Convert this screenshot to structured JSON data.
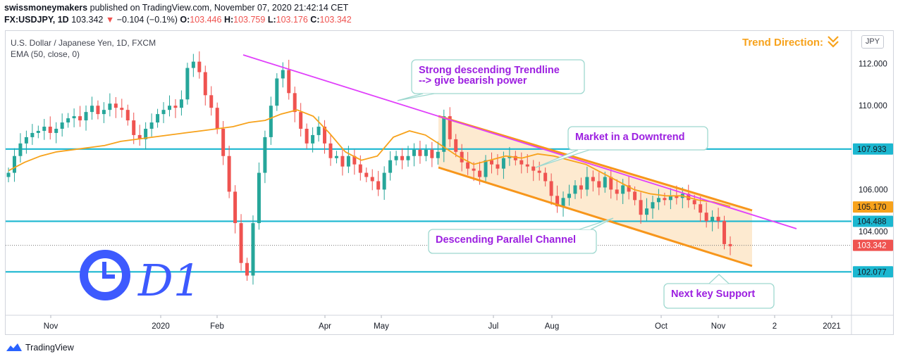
{
  "header": {
    "publisher": "swissmoneymakers",
    "published_text": "published on TradingView.com, November 07, 2020 21:42:14 CET",
    "symbol": "FX:USDJPY, 1D",
    "last": "103.342",
    "change_arrow": "▼",
    "change": "−0.104 (−0.1%)",
    "open_label": "O:",
    "open": "103.446",
    "high_label": "H:",
    "high": "103.759",
    "low_label": "L:",
    "low": "103.176",
    "close_label": "C:",
    "close": "103.342"
  },
  "legend": {
    "instrument": "U.S. Dollar / Japanese Yen, 1D, FXCM",
    "indicator": "EMA (50, close, 0)"
  },
  "currency_button": "JPY",
  "trend_direction_label": "Trend Direction:",
  "footer_brand": "TradingView",
  "timeframe_drawing": "D1",
  "annotations": {
    "trendline": [
      "Strong descending Trendline",
      "--> give bearish power"
    ],
    "downtrend": "Market in a Downtrend",
    "channel": "Descending Parallel Channel",
    "support": "Next key Support"
  },
  "colors": {
    "up": "#26a69a",
    "down": "#ef5350",
    "ema": "#f7a21b",
    "hline": "#1bb7d0",
    "trendline": "#e040fb",
    "channel": "#f7961b",
    "channel_fill": "#fde6c8",
    "annot_text": "#9c1fe0",
    "d1_drawing": "#3d5afe"
  },
  "chart_data": {
    "type": "candlestick",
    "ylim": [
      100.5,
      113.5
    ],
    "y_ticks": [
      "112.000",
      "110.000",
      "106.000",
      "104.000"
    ],
    "x_ticks": [
      "Nov",
      "2020",
      "Feb",
      "Apr",
      "May",
      "Jul",
      "Aug",
      "Oct",
      "Nov",
      "2",
      "2021"
    ],
    "horizontal_levels": [
      {
        "label": "107.933",
        "value": 107.933
      },
      {
        "label": "104.488",
        "value": 104.488
      },
      {
        "label": "102.077",
        "value": 102.077
      }
    ],
    "price_tags": [
      {
        "label": "105.170",
        "value": 105.17,
        "kind": "ema"
      },
      {
        "label": "103.342",
        "value": 103.342,
        "kind": "last"
      }
    ],
    "ema_values": [
      106.9,
      107.3,
      107.6,
      107.8,
      107.9,
      108.0,
      108.1,
      108.3,
      108.4,
      108.5,
      108.6,
      108.7,
      108.8,
      108.9,
      109.0,
      109.2,
      109.3,
      109.6,
      109.8,
      109.5,
      108.7,
      107.8,
      107.4,
      107.6,
      108.5,
      108.8,
      108.6,
      108.1,
      107.6,
      107.2,
      107.4,
      107.6,
      107.5,
      107.7,
      107.6,
      107.4,
      107.2,
      106.8,
      106.4,
      106.0,
      105.8,
      105.7,
      105.7,
      105.5,
      105.4,
      105.2
    ],
    "candles_note": "daily USDJPY candles Oct 2019 – Nov 2020",
    "closes": [
      106.8,
      107.6,
      108.2,
      108.5,
      108.7,
      108.8,
      109.0,
      108.7,
      108.9,
      109.2,
      109.4,
      109.5,
      109.3,
      109.7,
      110.0,
      109.6,
      109.8,
      110.1,
      109.9,
      109.8,
      109.3,
      108.6,
      108.4,
      108.9,
      109.2,
      109.6,
      109.8,
      110.0,
      109.9,
      110.3,
      111.8,
      112.1,
      111.6,
      110.5,
      109.9,
      108.9,
      107.6,
      105.9,
      104.4,
      102.5,
      101.9,
      104.4,
      106.8,
      108.5,
      110.0,
      111.3,
      111.7,
      110.6,
      109.7,
      108.9,
      108.2,
      108.6,
      109.0,
      108.2,
      107.5,
      107.6,
      107.1,
      107.6,
      107.2,
      106.8,
      106.6,
      106.4,
      106.0,
      106.8,
      107.4,
      107.6,
      107.4,
      107.6,
      107.9,
      107.6,
      107.9,
      107.5,
      107.8,
      109.5,
      108.4,
      107.8,
      107.3,
      107.0,
      106.9,
      106.6,
      107.4,
      107.2,
      107.0,
      107.5,
      107.6,
      107.4,
      107.2,
      107.1,
      106.9,
      106.8,
      106.4,
      105.7,
      105.2,
      105.6,
      105.8,
      106.2,
      106.0,
      106.6,
      106.4,
      106.1,
      106.6,
      106.0,
      105.8,
      106.2,
      105.9,
      105.5,
      104.8,
      105.1,
      105.4,
      105.6,
      105.5,
      105.7,
      105.6,
      105.8,
      105.5,
      105.3,
      104.9,
      104.5,
      104.7,
      104.5,
      103.4,
      103.3
    ]
  }
}
